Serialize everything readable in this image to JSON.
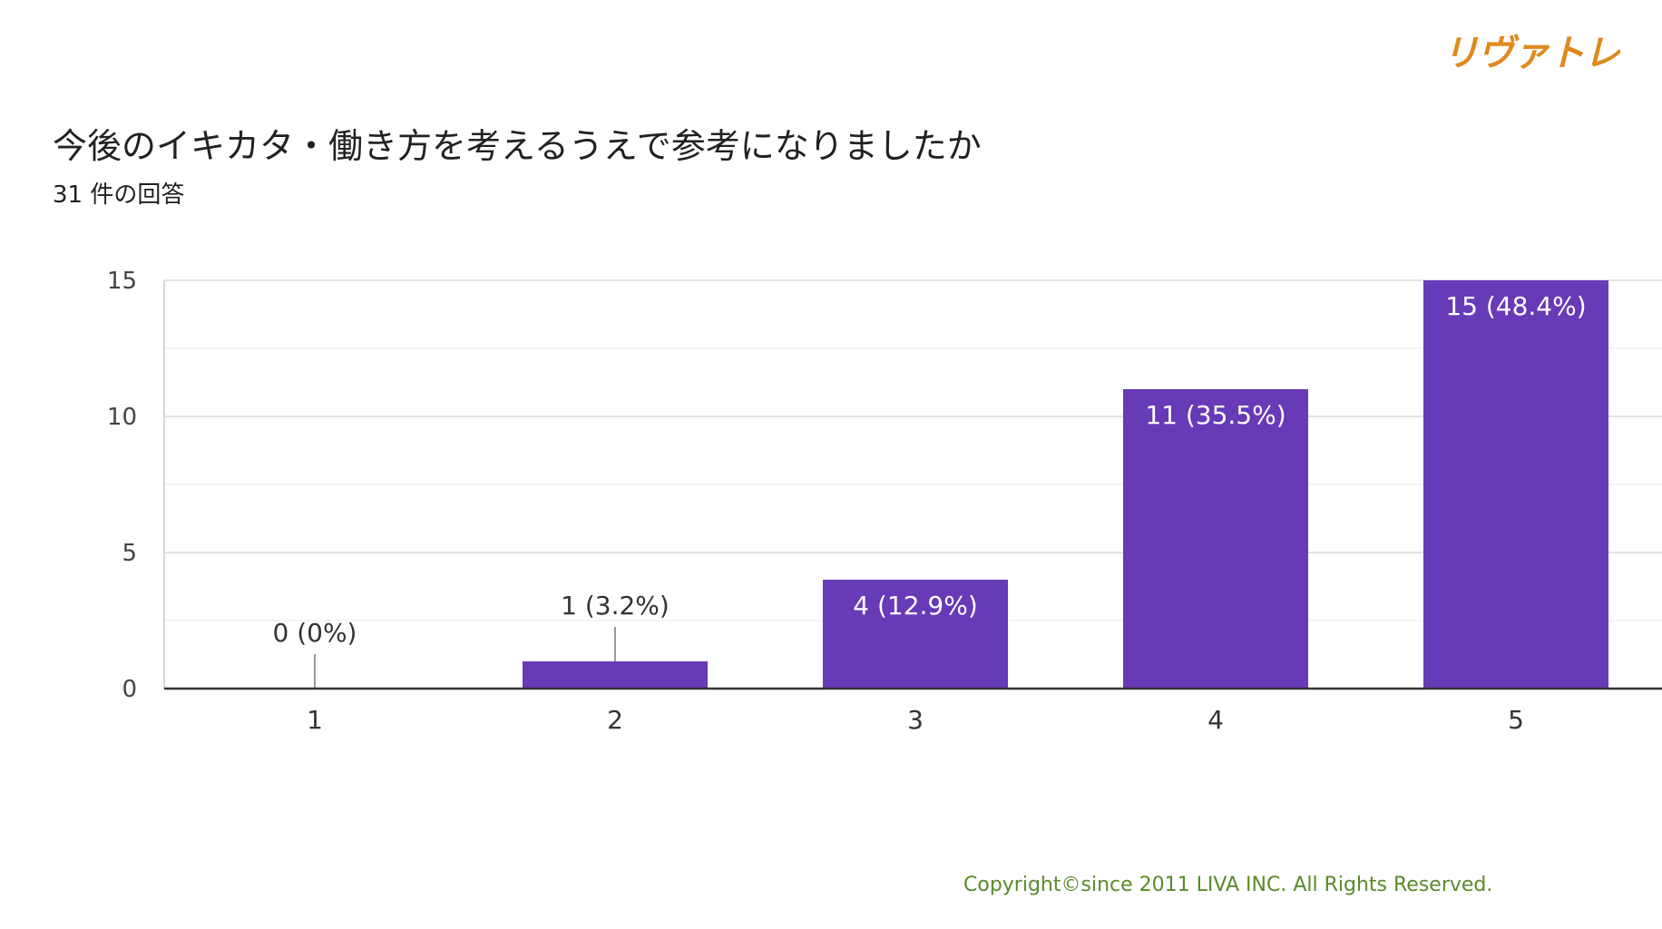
{
  "brand": {
    "logo_text": "リヴァトレ",
    "color": "#e0891c"
  },
  "header": {
    "title": "今後のイキカタ・働き方を考えるうえで参考になりましたか",
    "subtitle": "31 件の回答"
  },
  "footer": {
    "copyright": "Copyright©since 2011 LIVA INC. All Rights Reserved.",
    "color": "#5a8a2a"
  },
  "chart_data": {
    "type": "bar",
    "categories": [
      "1",
      "2",
      "3",
      "4",
      "5"
    ],
    "values": [
      0,
      1,
      4,
      11,
      15
    ],
    "data_labels": [
      "0 (0%)",
      "1 (3.2%)",
      "4 (12.9%)",
      "11 (35.5%)",
      "15 (48.4%)"
    ],
    "yticks": [
      0,
      5,
      10,
      15
    ],
    "ylim": [
      0,
      15
    ],
    "grid": true,
    "bar_color": "#673ab7"
  }
}
